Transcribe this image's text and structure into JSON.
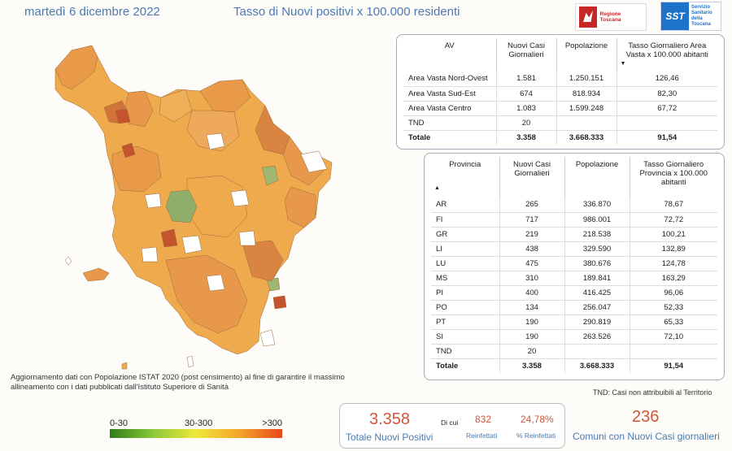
{
  "header": {
    "date": "martedì 6 dicembre 2022",
    "title": "Tasso di Nuovi positivi x 100.000 residenti",
    "logo_regione": "Regione Toscana",
    "logo_sst_mark": "SST",
    "logo_sst_text": [
      "Servizio",
      "Sanitario",
      "della",
      "Toscana"
    ]
  },
  "av_table": {
    "headers": [
      "AV",
      "Nuovi Casi Giornalieri",
      "Popolazione",
      "Tasso Giornaliero Area Vasta x 100.000 abitanti"
    ],
    "sort_indicator": "▼",
    "rows": [
      [
        "Area Vasta Nord-Ovest",
        "1.581",
        "1.250.151",
        "126,46"
      ],
      [
        "Area Vasta Sud-Est",
        "674",
        "818.934",
        "82,30"
      ],
      [
        "Area Vasta Centro",
        "1.083",
        "1.599.248",
        "67,72"
      ],
      [
        "TND",
        "20",
        "",
        ""
      ]
    ],
    "total": [
      "Totale",
      "3.358",
      "3.668.333",
      "91,54"
    ]
  },
  "prov_table": {
    "headers": [
      "Provincia",
      "Nuovi Casi Giornalieri",
      "Popolazione",
      "Tasso Giornaliero Provincia x 100.000 abitanti"
    ],
    "sort_indicator": "▲",
    "rows": [
      [
        "AR",
        "265",
        "336.870",
        "78,67"
      ],
      [
        "FI",
        "717",
        "986.001",
        "72,72"
      ],
      [
        "GR",
        "219",
        "218.538",
        "100,21"
      ],
      [
        "LI",
        "438",
        "329.590",
        "132,89"
      ],
      [
        "LU",
        "475",
        "380.676",
        "124,78"
      ],
      [
        "MS",
        "310",
        "189.841",
        "163,29"
      ],
      [
        "PI",
        "400",
        "416.425",
        "96,06"
      ],
      [
        "PO",
        "134",
        "256.047",
        "52,33"
      ],
      [
        "PT",
        "190",
        "290.819",
        "65,33"
      ],
      [
        "SI",
        "190",
        "263.526",
        "72,10"
      ],
      [
        "TND",
        "20",
        "",
        ""
      ]
    ],
    "total": [
      "Totale",
      "3.358",
      "3.668.333",
      "91,54"
    ]
  },
  "footnote": "Aggiornamento dati con Popolazione ISTAT 2020 (post censimento) al fine di garantire il massimo allineamento con i dati pubblicati dall'Istituto Superiore di Sanità",
  "tnd_note": "TND:  Casi non attribuibili al Territorio",
  "legend": {
    "labels": [
      "0-30",
      "30-300",
      ">300"
    ]
  },
  "kpi": {
    "total_value": "3.358",
    "total_label": "Totale Nuovi Positivi",
    "di_cui": "Di cui",
    "reinfettati_value": "832",
    "reinfettati_label": "Reinfettati",
    "pct_value": "24,78%",
    "pct_label": "% Reinfettati",
    "comuni_value": "236",
    "comuni_label": "Comuni con Nuovi Casi giornalieri"
  },
  "colors": {
    "accent_blue": "#4a7ab0",
    "kpi_red": "#d2553a",
    "map_orange": "#efaa4e",
    "map_dark": "#d2733a",
    "map_red": "#c4532e",
    "map_green": "#8fae6c"
  }
}
